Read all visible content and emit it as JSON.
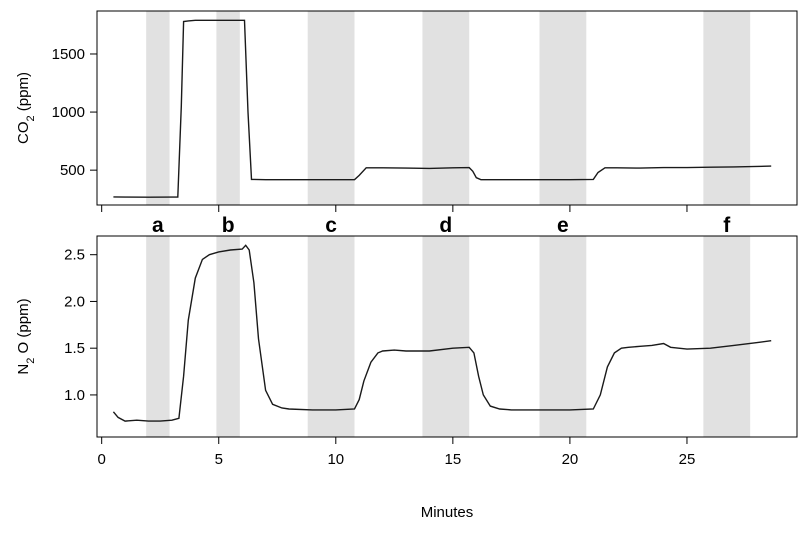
{
  "chart_data": {
    "type": "line",
    "xlabel": "Minutes",
    "x_ticks": [
      0,
      5,
      10,
      15,
      20,
      25
    ],
    "xlim": [
      -0.2,
      29.7
    ],
    "grid": false,
    "legend": "none",
    "band_color": "#e1e1e1",
    "line_color": "#1a1a1a",
    "bands": [
      {
        "label": "a",
        "start": 1.9,
        "end": 2.9
      },
      {
        "label": "b",
        "start": 4.9,
        "end": 5.9
      },
      {
        "label": "c",
        "start": 8.8,
        "end": 10.8
      },
      {
        "label": "d",
        "start": 13.7,
        "end": 15.7
      },
      {
        "label": "e",
        "start": 18.7,
        "end": 20.7
      },
      {
        "label": "f",
        "start": 25.7,
        "end": 27.7
      }
    ],
    "panels": [
      {
        "id": "co2",
        "ylabel_main": "CO",
        "ylabel_sub": "2",
        "ylabel_tail": " (ppm)",
        "ylim": [
          200,
          1870
        ],
        "y_ticks": [
          500,
          1000,
          1500
        ],
        "series": [
          {
            "x": [
              0.5,
              1.0,
              2.0,
              3.0,
              3.25,
              3.4,
              3.5,
              3.7,
              4.0,
              5.0,
              5.5,
              6.0,
              6.1,
              6.25,
              6.4,
              7.0,
              8.0,
              9.0,
              10.0,
              10.8,
              11.0,
              11.3,
              12.0,
              13.0,
              14.0,
              15.0,
              15.7,
              15.85,
              16.0,
              16.2,
              17.0,
              18.0,
              19.0,
              20.0,
              21.0,
              21.2,
              21.5,
              22.0,
              23.0,
              24.0,
              25.0,
              26.0,
              27.0,
              28.0,
              28.6
            ],
            "y": [
              270,
              268,
              267,
              268,
              268,
              1050,
              1780,
              1785,
              1790,
              1790,
              1790,
              1790,
              1790,
              1000,
              420,
              418,
              418,
              418,
              418,
              418,
              455,
              520,
              520,
              518,
              515,
              520,
              522,
              490,
              435,
              418,
              418,
              418,
              418,
              418,
              420,
              480,
              520,
              520,
              518,
              522,
              522,
              525,
              528,
              532,
              535
            ]
          }
        ]
      },
      {
        "id": "n2o",
        "ylabel_main": "N",
        "ylabel_sub": "2",
        "ylabel_tail": " O (ppm)",
        "ylim": [
          0.55,
          2.7
        ],
        "y_ticks": [
          1.0,
          1.5,
          2.0,
          2.5
        ],
        "series": [
          {
            "x": [
              0.5,
              0.7,
              1.0,
              1.5,
              2.0,
              2.5,
              3.0,
              3.3,
              3.5,
              3.7,
              4.0,
              4.3,
              4.6,
              5.0,
              5.5,
              6.0,
              6.15,
              6.3,
              6.5,
              6.7,
              7.0,
              7.3,
              7.7,
              8.0,
              9.0,
              10.0,
              10.8,
              11.0,
              11.2,
              11.5,
              11.8,
              12.0,
              12.5,
              13.0,
              14.0,
              15.0,
              15.7,
              15.9,
              16.1,
              16.3,
              16.6,
              17.0,
              17.5,
              18.0,
              19.0,
              20.0,
              21.0,
              21.3,
              21.6,
              21.9,
              22.2,
              22.5,
              23.0,
              23.5,
              24.0,
              24.3,
              25.0,
              26.0,
              27.0,
              28.0,
              28.6
            ],
            "y": [
              0.82,
              0.76,
              0.72,
              0.73,
              0.72,
              0.72,
              0.73,
              0.75,
              1.2,
              1.8,
              2.25,
              2.45,
              2.5,
              2.53,
              2.55,
              2.56,
              2.6,
              2.55,
              2.2,
              1.6,
              1.05,
              0.9,
              0.86,
              0.85,
              0.84,
              0.84,
              0.85,
              0.95,
              1.15,
              1.35,
              1.45,
              1.47,
              1.48,
              1.47,
              1.47,
              1.5,
              1.51,
              1.45,
              1.2,
              1.0,
              0.88,
              0.85,
              0.84,
              0.84,
              0.84,
              0.84,
              0.85,
              1.0,
              1.3,
              1.45,
              1.5,
              1.51,
              1.52,
              1.53,
              1.55,
              1.51,
              1.49,
              1.5,
              1.53,
              1.56,
              1.58
            ]
          }
        ]
      }
    ]
  }
}
